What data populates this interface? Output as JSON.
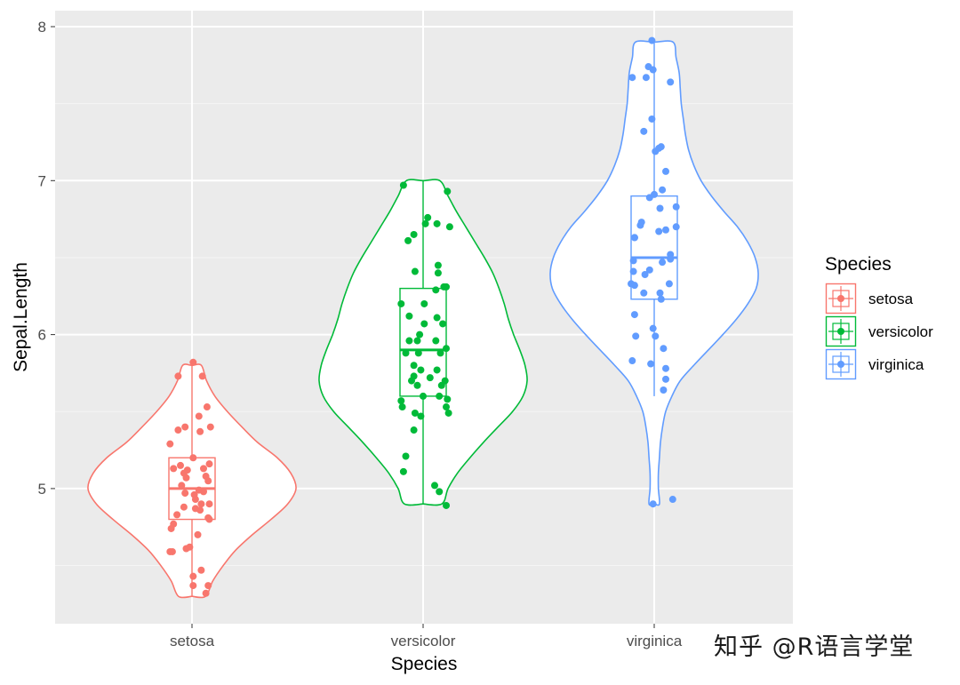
{
  "chart_data": {
    "type": "violin",
    "xlabel": "Species",
    "ylabel": "Sepal.Length",
    "ylim": [
      4.2,
      8.1
    ],
    "y_ticks": [
      5,
      6,
      7,
      8
    ],
    "grid": true,
    "legend": {
      "title": "Species",
      "position": "right"
    },
    "categories": [
      "setosa",
      "versicolor",
      "virginica"
    ],
    "colors": {
      "setosa": "#F8766D",
      "versicolor": "#00BA38",
      "virginica": "#619CFF"
    },
    "series": [
      {
        "name": "setosa",
        "color": "#F8766D",
        "box": {
          "q1": 4.8,
          "median": 5.0,
          "q3": 5.2,
          "whisker_low": 4.3,
          "whisker_high": 5.8
        },
        "violin": {
          "y": [
            4.3,
            4.4,
            4.5,
            4.6,
            4.7,
            4.8,
            4.9,
            5.0,
            5.1,
            5.2,
            5.3,
            5.4,
            5.5,
            5.6,
            5.7,
            5.8
          ],
          "width": [
            0.13,
            0.2,
            0.3,
            0.42,
            0.58,
            0.76,
            0.92,
            1.0,
            0.95,
            0.82,
            0.63,
            0.48,
            0.34,
            0.22,
            0.14,
            0.09
          ]
        },
        "points": [
          [
            0.01,
            5.82
          ],
          [
            -0.12,
            5.73
          ],
          [
            0.09,
            5.73
          ],
          [
            0.13,
            5.53
          ],
          [
            0.16,
            5.4
          ],
          [
            0.06,
            5.47
          ],
          [
            -0.06,
            5.4
          ],
          [
            -0.12,
            5.38
          ],
          [
            0.07,
            5.37
          ],
          [
            -0.19,
            5.29
          ],
          [
            0.01,
            5.2
          ],
          [
            0.15,
            5.16
          ],
          [
            -0.16,
            5.13
          ],
          [
            0.1,
            5.13
          ],
          [
            -0.1,
            5.15
          ],
          [
            -0.04,
            5.12
          ],
          [
            -0.07,
            5.1
          ],
          [
            0.12,
            5.08
          ],
          [
            -0.05,
            5.07
          ],
          [
            0.14,
            5.05
          ],
          [
            -0.09,
            5.02
          ],
          [
            0.06,
            4.99
          ],
          [
            0.1,
            4.98
          ],
          [
            -0.06,
            4.97
          ],
          [
            0.02,
            4.96
          ],
          [
            0.03,
            4.93
          ],
          [
            0.08,
            4.9
          ],
          [
            0.15,
            4.9
          ],
          [
            -0.07,
            4.88
          ],
          [
            0.03,
            4.87
          ],
          [
            0.07,
            4.86
          ],
          [
            -0.13,
            4.83
          ],
          [
            0.14,
            4.81
          ],
          [
            0.15,
            4.8
          ],
          [
            -0.16,
            4.77
          ],
          [
            -0.18,
            4.74
          ],
          [
            0.05,
            4.7
          ],
          [
            -0.02,
            4.62
          ],
          [
            -0.05,
            4.61
          ],
          [
            -0.17,
            4.59
          ],
          [
            -0.19,
            4.59
          ],
          [
            0.08,
            4.47
          ],
          [
            0.01,
            4.43
          ],
          [
            0.01,
            4.37
          ],
          [
            0.14,
            4.37
          ],
          [
            0.12,
            4.32
          ]
        ]
      },
      {
        "name": "versicolor",
        "color": "#00BA38",
        "box": {
          "q1": 5.6,
          "median": 5.9,
          "q3": 6.3,
          "whisker_low": 4.9,
          "whisker_high": 7.0
        },
        "violin": {
          "y": [
            4.9,
            5.0,
            5.1,
            5.2,
            5.3,
            5.4,
            5.5,
            5.6,
            5.7,
            5.8,
            5.9,
            6.0,
            6.1,
            6.2,
            6.3,
            6.4,
            6.5,
            6.6,
            6.7,
            6.8,
            6.9,
            7.0
          ],
          "width": [
            0.18,
            0.24,
            0.33,
            0.45,
            0.58,
            0.72,
            0.86,
            0.96,
            1.0,
            0.98,
            0.93,
            0.87,
            0.82,
            0.78,
            0.73,
            0.67,
            0.59,
            0.5,
            0.41,
            0.32,
            0.24,
            0.16
          ]
        },
        "points": [
          [
            0.21,
            6.93
          ],
          [
            -0.17,
            6.97
          ],
          [
            0.04,
            6.76
          ],
          [
            0.12,
            6.72
          ],
          [
            0.23,
            6.7
          ],
          [
            0.02,
            6.72
          ],
          [
            -0.08,
            6.65
          ],
          [
            -0.13,
            6.61
          ],
          [
            0.13,
            6.45
          ],
          [
            0.13,
            6.4
          ],
          [
            -0.07,
            6.41
          ],
          [
            0.18,
            6.31
          ],
          [
            0.2,
            6.31
          ],
          [
            0.11,
            6.29
          ],
          [
            -0.19,
            6.2
          ],
          [
            0.01,
            6.2
          ],
          [
            -0.12,
            6.12
          ],
          [
            0.12,
            6.11
          ],
          [
            0.01,
            6.07
          ],
          [
            0.17,
            6.07
          ],
          [
            -0.03,
            6.0
          ],
          [
            -0.12,
            5.96
          ],
          [
            -0.05,
            5.96
          ],
          [
            0.11,
            5.96
          ],
          [
            0.2,
            5.91
          ],
          [
            -0.15,
            5.88
          ],
          [
            -0.04,
            5.88
          ],
          [
            0.15,
            5.88
          ],
          [
            -0.08,
            5.8
          ],
          [
            -0.02,
            5.77
          ],
          [
            0.12,
            5.77
          ],
          [
            -0.08,
            5.73
          ],
          [
            0.06,
            5.72
          ],
          [
            -0.1,
            5.7
          ],
          [
            0.19,
            5.7
          ],
          [
            -0.05,
            5.67
          ],
          [
            0.16,
            5.67
          ],
          [
            0.0,
            5.6
          ],
          [
            0.14,
            5.6
          ],
          [
            -0.19,
            5.57
          ],
          [
            0.21,
            5.58
          ],
          [
            -0.18,
            5.53
          ],
          [
            0.2,
            5.53
          ],
          [
            -0.07,
            5.49
          ],
          [
            0.22,
            5.49
          ],
          [
            -0.02,
            5.47
          ],
          [
            -0.08,
            5.38
          ],
          [
            -0.15,
            5.21
          ],
          [
            -0.17,
            5.11
          ],
          [
            0.1,
            5.02
          ],
          [
            0.14,
            4.98
          ],
          [
            0.2,
            4.89
          ]
        ]
      },
      {
        "name": "virginica",
        "color": "#619CFF",
        "box": {
          "q1": 6.23,
          "median": 6.5,
          "q3": 6.9,
          "whisker_low": 5.6,
          "whisker_high": 7.9
        },
        "violin": {
          "y": [
            4.9,
            5.0,
            5.1,
            5.2,
            5.3,
            5.4,
            5.5,
            5.6,
            5.7,
            5.8,
            5.9,
            6.0,
            6.1,
            6.2,
            6.3,
            6.4,
            6.5,
            6.6,
            6.7,
            6.8,
            6.9,
            7.0,
            7.1,
            7.2,
            7.3,
            7.4,
            7.5,
            7.6,
            7.7,
            7.8,
            7.9
          ],
          "width": [
            0.05,
            0.04,
            0.04,
            0.05,
            0.06,
            0.08,
            0.11,
            0.17,
            0.25,
            0.38,
            0.52,
            0.66,
            0.79,
            0.9,
            0.98,
            1.0,
            0.97,
            0.9,
            0.8,
            0.67,
            0.55,
            0.45,
            0.38,
            0.33,
            0.3,
            0.28,
            0.26,
            0.25,
            0.24,
            0.21,
            0.18
          ]
        },
        "points": [
          [
            -0.02,
            7.91
          ],
          [
            -0.05,
            7.74
          ],
          [
            -0.01,
            7.72
          ],
          [
            -0.19,
            7.67
          ],
          [
            -0.07,
            7.67
          ],
          [
            0.14,
            7.64
          ],
          [
            -0.02,
            7.4
          ],
          [
            -0.09,
            7.32
          ],
          [
            0.06,
            7.22
          ],
          [
            0.04,
            7.21
          ],
          [
            0.01,
            7.19
          ],
          [
            0.1,
            7.06
          ],
          [
            0.07,
            6.94
          ],
          [
            0.0,
            6.91
          ],
          [
            -0.04,
            6.89
          ],
          [
            0.19,
            6.83
          ],
          [
            0.05,
            6.82
          ],
          [
            -0.11,
            6.73
          ],
          [
            -0.12,
            6.71
          ],
          [
            0.19,
            6.7
          ],
          [
            0.1,
            6.68
          ],
          [
            0.04,
            6.67
          ],
          [
            -0.17,
            6.63
          ],
          [
            -0.17,
            6.63
          ],
          [
            0.14,
            6.52
          ],
          [
            0.14,
            6.49
          ],
          [
            0.07,
            6.47
          ],
          [
            -0.18,
            6.48
          ],
          [
            -0.04,
            6.42
          ],
          [
            -0.18,
            6.41
          ],
          [
            -0.08,
            6.39
          ],
          [
            0.13,
            6.33
          ],
          [
            -0.2,
            6.33
          ],
          [
            -0.17,
            6.32
          ],
          [
            -0.09,
            6.27
          ],
          [
            0.05,
            6.27
          ],
          [
            0.06,
            6.23
          ],
          [
            -0.17,
            6.13
          ],
          [
            -0.01,
            6.04
          ],
          [
            0.01,
            5.99
          ],
          [
            -0.16,
            5.99
          ],
          [
            0.08,
            5.91
          ],
          [
            -0.19,
            5.83
          ],
          [
            -0.03,
            5.81
          ],
          [
            0.1,
            5.78
          ],
          [
            0.1,
            5.71
          ],
          [
            0.08,
            5.64
          ],
          [
            0.16,
            4.93
          ],
          [
            -0.01,
            4.9
          ]
        ]
      }
    ]
  },
  "watermark": "知乎 @R语言学堂"
}
